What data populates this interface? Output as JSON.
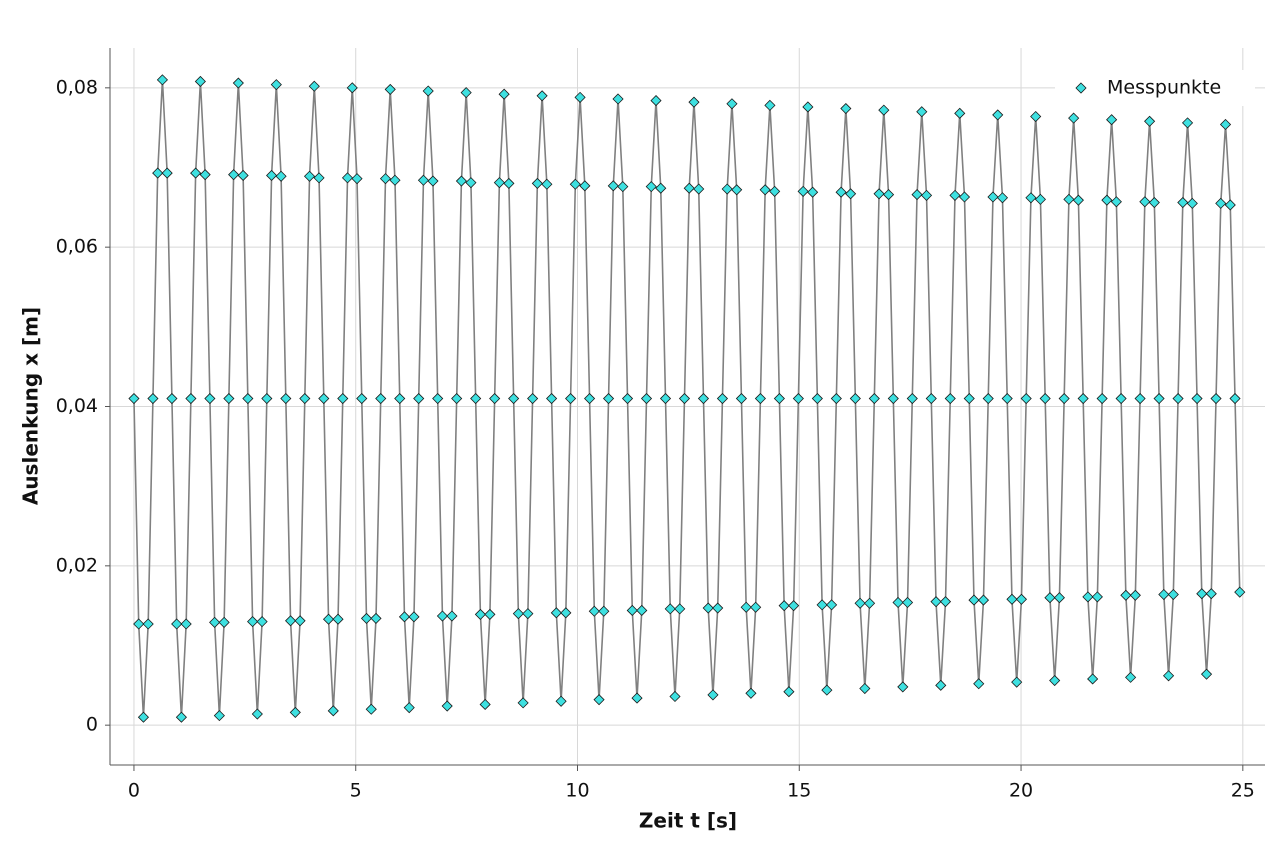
{
  "chart_data": {
    "type": "line",
    "xlabel": "Zeit t [s]",
    "ylabel": "Auslenkung x [m]",
    "xlim": [
      -0.54,
      25.5
    ],
    "ylim": [
      -0.005,
      0.085
    ],
    "xticks": [
      0,
      5,
      10,
      15,
      20,
      25
    ],
    "yticks": [
      0,
      {
        "value": 0.02,
        "label": "0,02"
      },
      {
        "value": 0.04,
        "label": "0,04"
      },
      {
        "value": 0.06,
        "label": "0,06"
      },
      {
        "value": 0.08,
        "label": "0,08"
      }
    ],
    "grid": true,
    "legend": "upper right",
    "x": [
      0,
      0.107,
      0.214,
      0.321,
      0.428,
      0.535,
      0.642,
      0.749,
      0.856,
      0.963,
      1.07,
      1.177,
      1.284,
      1.391,
      1.498,
      1.605,
      1.712,
      1.819,
      1.926,
      2.033,
      2.14,
      2.247,
      2.354,
      2.461,
      2.568,
      2.675,
      2.782,
      2.889,
      2.996,
      3.103,
      3.21,
      3.317,
      3.424,
      3.531,
      3.638,
      3.745,
      3.852,
      3.959,
      4.066,
      4.173,
      4.28,
      4.387,
      4.494,
      4.601,
      4.708,
      4.815,
      4.922,
      5.029,
      5.136,
      5.243,
      5.35,
      5.457,
      5.564,
      5.671,
      5.778,
      5.885,
      5.992,
      6.099,
      6.206,
      6.313,
      6.42,
      6.527,
      6.634,
      6.741,
      6.848,
      6.955,
      7.062,
      7.169,
      7.276,
      7.383,
      7.49,
      7.597,
      7.704,
      7.811,
      7.918,
      8.025,
      8.132,
      8.239,
      8.346,
      8.453,
      8.56,
      8.667,
      8.774,
      8.881,
      8.988,
      9.095,
      9.202,
      9.309,
      9.416,
      9.523,
      9.63,
      9.737,
      9.844,
      9.951,
      10.058,
      10.165,
      10.272,
      10.379,
      10.486,
      10.593,
      10.7,
      10.807,
      10.914,
      11.021,
      11.128,
      11.235,
      11.342,
      11.449,
      11.556,
      11.663,
      11.77,
      11.877,
      11.984,
      12.091,
      12.198,
      12.305,
      12.412,
      12.519,
      12.626,
      12.733,
      12.84,
      12.947,
      13.054,
      13.161,
      13.268,
      13.375,
      13.482,
      13.589,
      13.696,
      13.803,
      13.91,
      14.017,
      14.124,
      14.231,
      14.338,
      14.445,
      14.552,
      14.659,
      14.766,
      14.873,
      14.98,
      15.087,
      15.194,
      15.301,
      15.408,
      15.515,
      15.622,
      15.729,
      15.836,
      15.943,
      16.05,
      16.157,
      16.264,
      16.371,
      16.478,
      16.585,
      16.692,
      16.799,
      16.906,
      17.013,
      17.12,
      17.227,
      17.334,
      17.441,
      17.548,
      17.655,
      17.762,
      17.869,
      17.976,
      18.083,
      18.19,
      18.297,
      18.404,
      18.511,
      18.618,
      18.725,
      18.832,
      18.939,
      19.046,
      19.153,
      19.26,
      19.367,
      19.474,
      19.581,
      19.688,
      19.795,
      19.902,
      20.009,
      20.116,
      20.223,
      20.33,
      20.437,
      20.544,
      20.651,
      20.758,
      20.865,
      20.972,
      21.079,
      21.186,
      21.293,
      21.4,
      21.507,
      21.614,
      21.721,
      21.828,
      21.935,
      22.042,
      22.149,
      22.256,
      22.363,
      22.47,
      22.577,
      22.684,
      22.791,
      22.898,
      23.005,
      23.112,
      23.219,
      23.326,
      23.433,
      23.54,
      23.647,
      23.754,
      23.861,
      23.968,
      24.075,
      24.182,
      24.289,
      24.396,
      24.503,
      24.61,
      24.717,
      24.824,
      24.931
    ],
    "series": [
      {
        "name": "Messpunkte",
        "color": "#3ee0e0",
        "line_color": "#808080",
        "values": [
          0.041,
          0.0127,
          0.001,
          0.0127,
          0.041,
          0.0693,
          0.081,
          0.0693,
          0.041,
          0.0127,
          0.001,
          0.0127,
          0.041,
          0.0693,
          0.0808,
          0.0691,
          0.041,
          0.0129,
          0.0012,
          0.0129,
          0.041,
          0.0691,
          0.0806,
          0.069,
          0.041,
          0.013,
          0.0014,
          0.013,
          0.041,
          0.069,
          0.0804,
          0.0689,
          0.041,
          0.0131,
          0.0016,
          0.0131,
          0.041,
          0.0689,
          0.0802,
          0.0687,
          0.041,
          0.0133,
          0.0018,
          0.0133,
          0.041,
          0.0687,
          0.08,
          0.0686,
          0.041,
          0.0134,
          0.002,
          0.0134,
          0.041,
          0.0686,
          0.0798,
          0.0684,
          0.041,
          0.0136,
          0.0022,
          0.0136,
          0.041,
          0.0684,
          0.0796,
          0.0683,
          0.041,
          0.0137,
          0.0024,
          0.0137,
          0.041,
          0.0683,
          0.0794,
          0.0681,
          0.041,
          0.0139,
          0.0026,
          0.0139,
          0.041,
          0.0681,
          0.0792,
          0.068,
          0.041,
          0.014,
          0.0028,
          0.014,
          0.041,
          0.068,
          0.079,
          0.0679,
          0.041,
          0.0141,
          0.003,
          0.0141,
          0.041,
          0.0679,
          0.0788,
          0.0677,
          0.041,
          0.0143,
          0.0032,
          0.0143,
          0.041,
          0.0677,
          0.0786,
          0.0676,
          0.041,
          0.0144,
          0.0034,
          0.0144,
          0.041,
          0.0676,
          0.0784,
          0.0674,
          0.041,
          0.0146,
          0.0036,
          0.0146,
          0.041,
          0.0674,
          0.0782,
          0.0673,
          0.041,
          0.0147,
          0.0038,
          0.0147,
          0.041,
          0.0673,
          0.078,
          0.0672,
          0.041,
          0.0148,
          0.004,
          0.0148,
          0.041,
          0.0672,
          0.0778,
          0.067,
          0.041,
          0.015,
          0.0042,
          0.015,
          0.041,
          0.067,
          0.0776,
          0.0669,
          0.041,
          0.0151,
          0.0044,
          0.0151,
          0.041,
          0.0669,
          0.0774,
          0.0667,
          0.041,
          0.0153,
          0.0046,
          0.0153,
          0.041,
          0.0667,
          0.0772,
          0.0666,
          0.041,
          0.0154,
          0.0048,
          0.0154,
          0.041,
          0.0666,
          0.077,
          0.0665,
          0.041,
          0.0155,
          0.005,
          0.0155,
          0.041,
          0.0665,
          0.0768,
          0.0663,
          0.041,
          0.0157,
          0.0052,
          0.0157,
          0.041,
          0.0663,
          0.0766,
          0.0662,
          0.041,
          0.0158,
          0.0054,
          0.0158,
          0.041,
          0.0662,
          0.0764,
          0.066,
          0.041,
          0.016,
          0.0056,
          0.016,
          0.041,
          0.066,
          0.0762,
          0.0659,
          0.041,
          0.0161,
          0.0058,
          0.0161,
          0.041,
          0.0659,
          0.076,
          0.0657,
          0.041,
          0.0163,
          0.006,
          0.0163,
          0.041,
          0.0657,
          0.0758,
          0.0656,
          0.041,
          0.0164,
          0.0062,
          0.0164,
          0.041,
          0.0656,
          0.0756,
          0.0655,
          0.041,
          0.0165,
          0.0064,
          0.0165,
          0.041,
          0.0655,
          0.0754,
          0.0653,
          0.041,
          0.0167
        ]
      }
    ]
  }
}
